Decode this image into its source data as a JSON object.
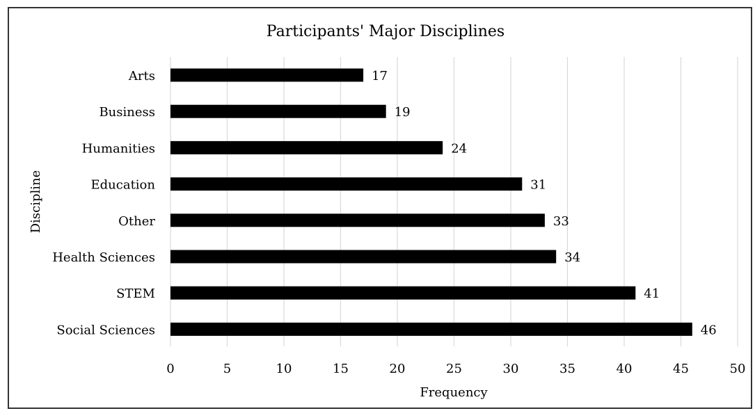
{
  "chart_data": {
    "type": "bar",
    "orientation": "horizontal",
    "title": "Participants' Major Disciplines",
    "xlabel": "Frequency",
    "ylabel": "Discipline",
    "categories": [
      "Arts",
      "Business",
      "Humanities",
      "Education",
      "Other",
      "Health Sciences",
      "STEM",
      "Social Sciences"
    ],
    "values": [
      17,
      19,
      24,
      31,
      33,
      34,
      41,
      46
    ],
    "xlim": [
      0,
      50
    ],
    "x_ticks": [
      0,
      5,
      10,
      15,
      20,
      25,
      30,
      35,
      40,
      45,
      50
    ],
    "grid": true,
    "data_labels": true,
    "bar_color": "#000000",
    "grid_color": "#d9d9d9"
  }
}
